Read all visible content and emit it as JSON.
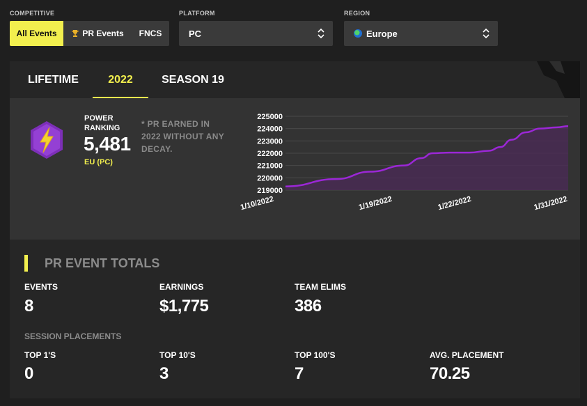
{
  "filters": {
    "competitive": {
      "label": "COMPETITIVE",
      "options": [
        {
          "label": "All Events",
          "active": true
        },
        {
          "label": "PR Events",
          "icon": "trophy-icon",
          "active": false
        },
        {
          "label": "FNCS",
          "active": false
        }
      ]
    },
    "platform": {
      "label": "PLATFORM",
      "value": "PC"
    },
    "region": {
      "label": "REGION",
      "value": "Europe",
      "icon": "globe-icon"
    }
  },
  "tabs": [
    {
      "label": "LIFETIME",
      "active": false
    },
    {
      "label": "2022",
      "active": true
    },
    {
      "label": "SEASON 19",
      "active": false
    }
  ],
  "power_ranking": {
    "title": "POWER RANKING",
    "value": "5,481",
    "region": "EU (PC)",
    "note": "* PR EARNED IN 2022 WITHOUT ANY DECAY."
  },
  "chart_data": {
    "type": "area",
    "x_tick_labels": [
      "1/10/2022",
      "1/19/2022",
      "1/22/2022",
      "1/31/2022"
    ],
    "y_tick_labels": [
      "225000",
      "224000",
      "223000",
      "222000",
      "221000",
      "220000",
      "219000"
    ],
    "x": [
      0,
      0.18,
      0.3,
      0.42,
      0.48,
      0.52,
      0.58,
      0.65,
      0.72,
      0.76,
      0.8,
      0.85,
      0.9,
      0.96,
      1.0
    ],
    "y": [
      219300,
      219900,
      220500,
      221000,
      221600,
      222000,
      222050,
      222050,
      222200,
      222500,
      223100,
      223700,
      224000,
      224100,
      224200
    ],
    "ylim": [
      219000,
      225000
    ],
    "grid": true,
    "colors": {
      "line": "#9b27d6",
      "fill": "#4a2a55",
      "grid": "#4a4a4a"
    }
  },
  "totals": {
    "title": "PR EVENT TOTALS",
    "stats": [
      {
        "label": "EVENTS",
        "value": "8"
      },
      {
        "label": "EARNINGS",
        "value": "$1,775"
      },
      {
        "label": "TEAM ELIMS",
        "value": "386"
      }
    ],
    "placements_title": "SESSION PLACEMENTS",
    "placements": [
      {
        "label": "TOP 1'S",
        "value": "0"
      },
      {
        "label": "TOP 10'S",
        "value": "3"
      },
      {
        "label": "TOP 100'S",
        "value": "7"
      },
      {
        "label": "AVG. PLACEMENT",
        "value": "70.25"
      }
    ]
  },
  "colors": {
    "accent": "#f2ef4e",
    "card": "#2b2b2b",
    "background": "#1f1f1f"
  }
}
